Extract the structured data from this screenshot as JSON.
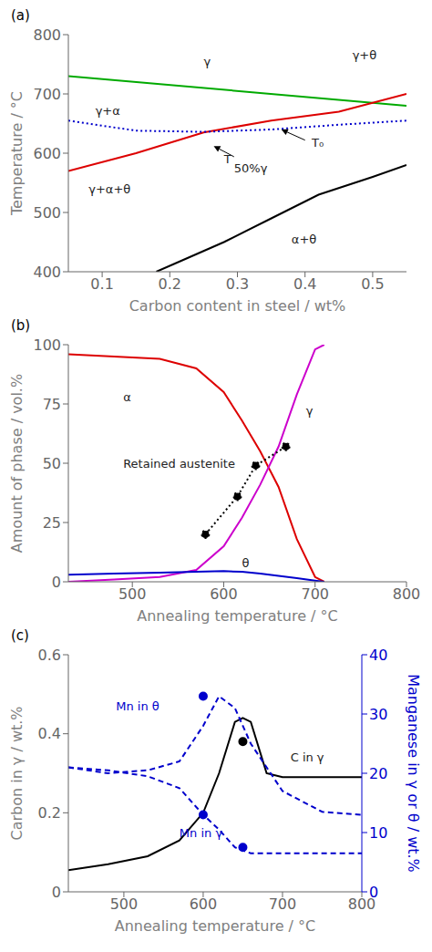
{
  "chart_data": [
    {
      "type": "line",
      "title": "(a)",
      "x_label": "Carbon content in steel / wt%",
      "y_label": "Temperature / °C",
      "xlim": [
        0.05,
        0.55
      ],
      "ylim": [
        400,
        800
      ],
      "xticks": [
        0.1,
        0.2,
        0.3,
        0.4,
        0.5
      ],
      "yticks": [
        400,
        500,
        600,
        700,
        800
      ],
      "series": [
        {
          "x": [
            0.05,
            0.55
          ],
          "values": [
            730,
            680
          ],
          "color": "#00aa00",
          "line_style": "solid"
        },
        {
          "x": [
            0.05,
            0.15,
            0.25,
            0.35,
            0.45,
            0.55
          ],
          "values": [
            570,
            600,
            635,
            655,
            670,
            700
          ],
          "color": "#dd0000",
          "line_style": "solid"
        },
        {
          "x": [
            0.05,
            0.15,
            0.25,
            0.35,
            0.45,
            0.55
          ],
          "values": [
            655,
            638,
            636,
            640,
            648,
            655
          ],
          "color": "#0000cc",
          "line_style": "dotted"
        },
        {
          "x": [
            0.18,
            0.22,
            0.28,
            0.35,
            0.42,
            0.5,
            0.55
          ],
          "values": [
            400,
            420,
            450,
            490,
            530,
            560,
            580
          ],
          "color": "#000000",
          "line_style": "solid"
        }
      ],
      "annotations": [
        {
          "text": "γ",
          "x": 0.25,
          "y": 755
        },
        {
          "text": "γ+θ",
          "x": 0.47,
          "y": 765
        },
        {
          "text": "γ+α",
          "x": 0.09,
          "y": 672
        },
        {
          "text": "γ+α+θ",
          "x": 0.08,
          "y": 540
        },
        {
          "text": "α+θ",
          "x": 0.38,
          "y": 455
        },
        {
          "text": "T₀",
          "x": 0.41,
          "y": 618
        },
        {
          "text": "T",
          "x": 0.28,
          "y": 590
        },
        {
          "text": "50%γ",
          "x": 0.295,
          "y": 574
        }
      ],
      "arrows": [
        {
          "from": [
            0.4,
            622
          ],
          "to": [
            0.365,
            640
          ]
        },
        {
          "from": [
            0.295,
            594
          ],
          "to": [
            0.265,
            612
          ]
        }
      ]
    },
    {
      "type": "line",
      "title": "(b)",
      "x_label": "Annealing temperature / °C",
      "y_label": "Amount of phase / vol.%",
      "xlim": [
        430,
        800
      ],
      "ylim": [
        0,
        100
      ],
      "xticks": [
        500,
        600,
        700,
        800
      ],
      "yticks": [
        0,
        25,
        50,
        75,
        100
      ],
      "series": [
        {
          "x": [
            430,
            480,
            530,
            570,
            600,
            620,
            640,
            660,
            680,
            700,
            710
          ],
          "values": [
            96,
            95,
            94,
            90,
            80,
            68,
            55,
            40,
            18,
            2,
            0
          ],
          "color": "#dd0000",
          "line_style": "solid"
        },
        {
          "x": [
            430,
            480,
            530,
            570,
            600,
            620,
            640,
            660,
            680,
            700,
            710
          ],
          "values": [
            0,
            1,
            2,
            5,
            15,
            27,
            41,
            57,
            79,
            98,
            100
          ],
          "color": "#cc00cc",
          "line_style": "solid"
        },
        {
          "x": [
            430,
            480,
            530,
            570,
            600,
            620,
            640,
            660,
            680,
            700,
            710
          ],
          "values": [
            3,
            3.5,
            3.8,
            4.2,
            4.5,
            4.2,
            3.5,
            2.5,
            1.5,
            0.5,
            0
          ],
          "color": "#0000cc",
          "line_style": "solid"
        },
        {
          "x": [
            580,
            615,
            635,
            668
          ],
          "values": [
            20,
            36,
            49,
            57
          ],
          "color": "#000000",
          "line_style": "dotted",
          "marker": "circle"
        }
      ],
      "annotations": [
        {
          "text": "α",
          "x": 490,
          "y": 78
        },
        {
          "text": "γ",
          "x": 690,
          "y": 72
        },
        {
          "text": "θ",
          "x": 620,
          "y": 8
        },
        {
          "text": "Retained austenite",
          "x": 490,
          "y": 50
        }
      ]
    },
    {
      "type": "line",
      "title": "(c)",
      "x_label": "Annealing temperature / °C",
      "y_label": "Carbon in γ / wt.%",
      "y2_label": "Manganese in γ or θ / wt.%",
      "xlim": [
        430,
        800
      ],
      "ylim": [
        0.0,
        0.6
      ],
      "y2lim": [
        0,
        40
      ],
      "xticks": [
        500,
        600,
        700,
        800
      ],
      "yticks": [
        0,
        0.2,
        0.4,
        0.6
      ],
      "y2ticks": [
        0,
        10,
        20,
        30,
        40
      ],
      "series": [
        {
          "x": [
            430,
            480,
            530,
            570,
            600,
            620,
            640,
            650,
            660,
            680,
            700,
            720,
            750,
            800
          ],
          "values": [
            0.055,
            0.07,
            0.09,
            0.13,
            0.2,
            0.3,
            0.43,
            0.44,
            0.43,
            0.3,
            0.29,
            0.29,
            0.29,
            0.29
          ],
          "color": "#000000",
          "line_style": "solid"
        },
        {
          "x": [
            430,
            480,
            530,
            570,
            600,
            620,
            640,
            660,
            700,
            750,
            800
          ],
          "values": [
            21.0,
            20.0,
            20.5,
            22.0,
            28.0,
            33.0,
            31.0,
            25.0,
            17.0,
            13.5,
            13.0
          ],
          "color": "#0000cc",
          "line_style": "dashed",
          "axis": "y2"
        },
        {
          "x": [
            430,
            480,
            530,
            570,
            600,
            620,
            640,
            660,
            700,
            750,
            800
          ],
          "values": [
            21.0,
            20.5,
            19.5,
            17.5,
            13.0,
            10.5,
            7.5,
            6.5,
            6.5,
            6.5,
            6.5
          ],
          "color": "#0000cc",
          "line_style": "dashed",
          "axis": "y2"
        },
        {
          "type": "scatter",
          "x": [
            650
          ],
          "values": [
            0.38
          ],
          "color": "#000000",
          "marker": "circle"
        },
        {
          "type": "scatter",
          "x": [
            600
          ],
          "values": [
            33.0
          ],
          "color": "#0000cc",
          "marker": "circle",
          "axis": "y2"
        },
        {
          "type": "scatter",
          "x": [
            600,
            650
          ],
          "values": [
            13.0,
            7.5
          ],
          "color": "#0000cc",
          "marker": "circle",
          "axis": "y2"
        }
      ],
      "annotations": [
        {
          "text": "C in γ",
          "x": 710,
          "y": 0.34
        },
        {
          "text": "Mn in θ",
          "x": 490,
          "y": 0.47,
          "color": "#0000cc"
        },
        {
          "text": "Mn in γ",
          "x": 570,
          "y": 0.15,
          "color": "#0000cc"
        }
      ]
    }
  ]
}
